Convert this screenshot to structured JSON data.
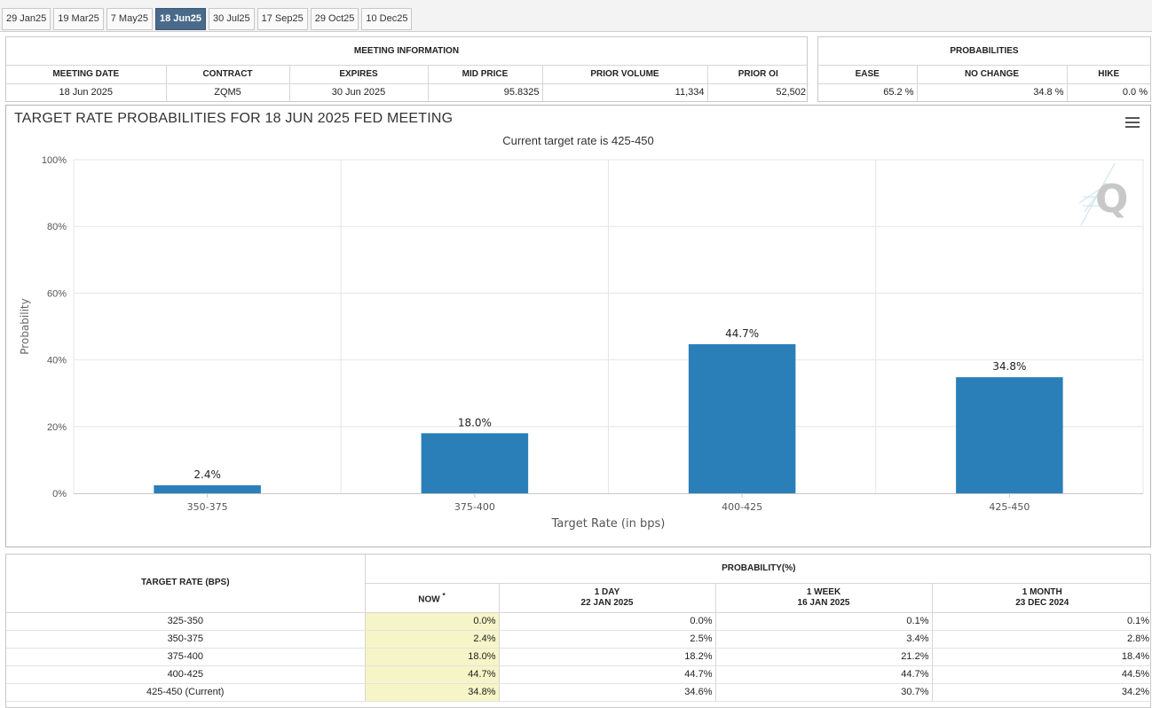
{
  "tabs": [
    {
      "label": "29 Jan25",
      "active": false
    },
    {
      "label": "19 Mar25",
      "active": false
    },
    {
      "label": "7 May25",
      "active": false
    },
    {
      "label": "18 Jun25",
      "active": true
    },
    {
      "label": "30 Jul25",
      "active": false
    },
    {
      "label": "17 Sep25",
      "active": false
    },
    {
      "label": "29 Oct25",
      "active": false
    },
    {
      "label": "10 Dec25",
      "active": false
    }
  ],
  "meeting_info": {
    "header": "MEETING INFORMATION",
    "columns": [
      "MEETING DATE",
      "CONTRACT",
      "EXPIRES",
      "MID PRICE",
      "PRIOR VOLUME",
      "PRIOR OI"
    ],
    "values": [
      "18 Jun 2025",
      "ZQM5",
      "30 Jun 2025",
      "95.8325",
      "11,334",
      "52,502"
    ]
  },
  "probabilities": {
    "header": "PROBABILITIES",
    "columns": [
      "EASE",
      "NO CHANGE",
      "HIKE"
    ],
    "values": [
      "65.2 %",
      "34.8 %",
      "0.0 %"
    ]
  },
  "chart": {
    "menu_icon": "hamburger-menu-icon",
    "watermark_icon": "q-logo-icon",
    "bar_color": "#2a7fb8"
  },
  "chart_data": {
    "type": "bar",
    "title": "TARGET RATE PROBABILITIES FOR 18 JUN 2025 FED MEETING",
    "subtitle": "Current target rate is 425-450",
    "xlabel": "Target Rate (in bps)",
    "ylabel": "Probability",
    "categories": [
      "350-375",
      "375-400",
      "400-425",
      "425-450"
    ],
    "values": [
      2.4,
      18.0,
      44.7,
      34.8
    ],
    "data_labels": [
      "2.4%",
      "18.0%",
      "44.7%",
      "34.8%"
    ],
    "yticks": [
      "0%",
      "20%",
      "40%",
      "60%",
      "80%",
      "100%"
    ],
    "ylim": [
      0,
      100
    ],
    "grid": true,
    "legend": "none"
  },
  "prob_table": {
    "rate_header": "TARGET RATE (BPS)",
    "prob_header": "PROBABILITY(%)",
    "now_label": "NOW",
    "now_marker": "*",
    "columns": [
      {
        "line1": "1 DAY",
        "line2": "22 JAN 2025"
      },
      {
        "line1": "1 WEEK",
        "line2": "16 JAN 2025"
      },
      {
        "line1": "1 MONTH",
        "line2": "23 DEC 2024"
      }
    ],
    "rows": [
      {
        "rate": "325-350",
        "now": "0.0%",
        "day": "0.0%",
        "week": "0.1%",
        "month": "0.1%"
      },
      {
        "rate": "350-375",
        "now": "2.4%",
        "day": "2.5%",
        "week": "3.4%",
        "month": "2.8%"
      },
      {
        "rate": "375-400",
        "now": "18.0%",
        "day": "18.2%",
        "week": "21.2%",
        "month": "18.4%"
      },
      {
        "rate": "400-425",
        "now": "44.7%",
        "day": "44.7%",
        "week": "44.7%",
        "month": "44.5%"
      },
      {
        "rate": "425-450 (Current)",
        "now": "34.8%",
        "day": "34.6%",
        "week": "30.7%",
        "month": "34.2%"
      }
    ]
  }
}
